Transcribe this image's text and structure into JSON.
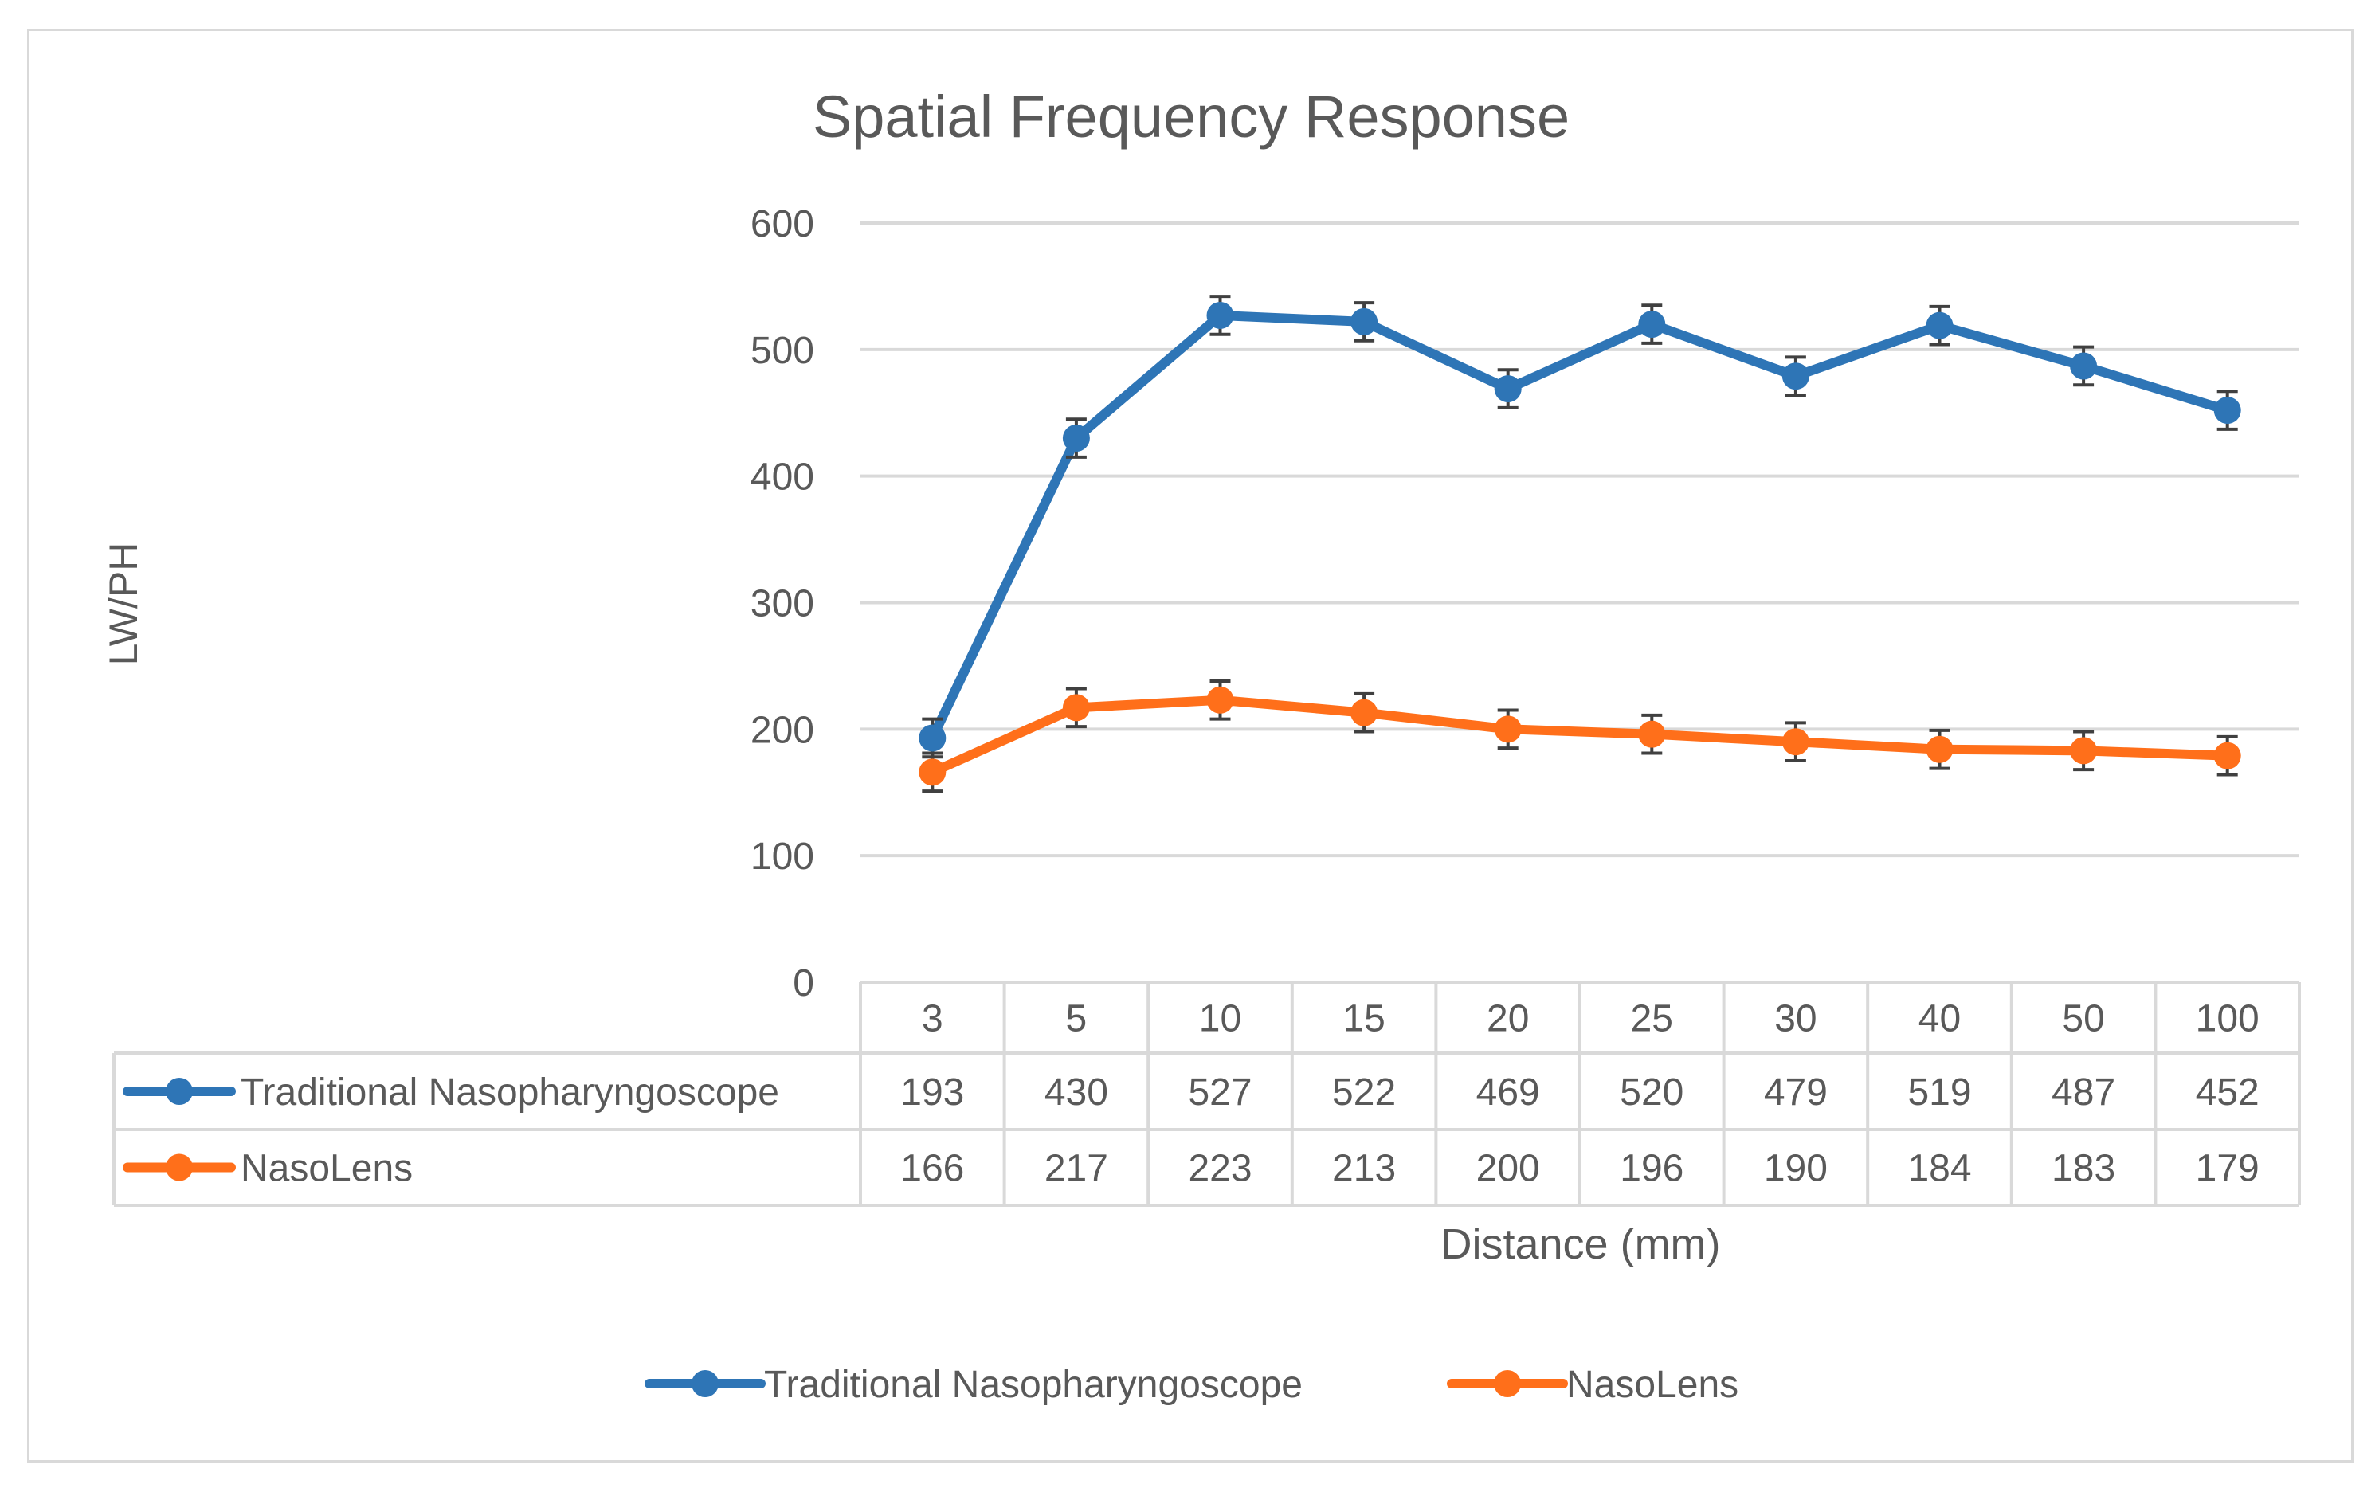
{
  "chart_data": {
    "type": "line",
    "title": "Spatial Frequency Response",
    "xlabel": "Distance (mm)",
    "ylabel": "LW/PH",
    "ylim": [
      0,
      600
    ],
    "yticks": [
      0,
      100,
      200,
      300,
      400,
      500,
      600
    ],
    "grid": true,
    "legend_position": "bottom",
    "data_table": true,
    "error_bars": true,
    "categories": [
      "3",
      "5",
      "10",
      "15",
      "20",
      "25",
      "30",
      "40",
      "50",
      "100"
    ],
    "series": [
      {
        "name": "Traditional Nasopharyngoscope",
        "color": "#2e75b6",
        "values": [
          193,
          430,
          527,
          522,
          469,
          520,
          479,
          519,
          487,
          452
        ],
        "error": 15
      },
      {
        "name": "NasoLens",
        "color": "#ff6f1a",
        "values": [
          166,
          217,
          223,
          213,
          200,
          196,
          190,
          184,
          183,
          179
        ],
        "error": 15
      }
    ]
  }
}
